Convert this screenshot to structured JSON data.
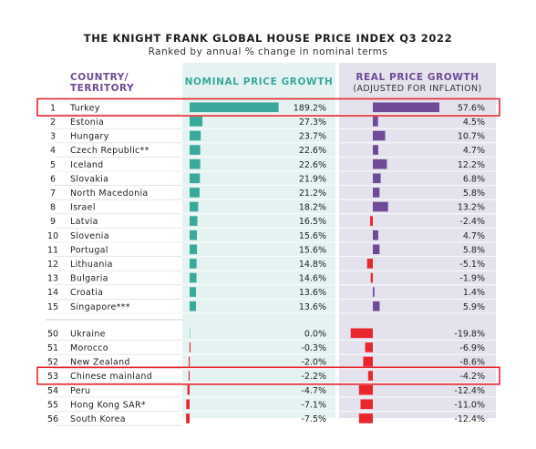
{
  "title": "THE KNIGHT FRANK GLOBAL HOUSE PRICE INDEX Q3 2022",
  "subtitle": "Ranked by annual % change in nominal terms",
  "columns": {
    "country_line1": "COUNTRY/",
    "country_line2": "TERRITORY",
    "nominal": "NOMINAL PRICE GROWTH",
    "real_line1": "REAL PRICE GROWTH",
    "real_line2": "(ADJUSTED FOR INFLATION)"
  },
  "colors": {
    "nominal_positive": "#3aa89b",
    "real_positive": "#6f4a96",
    "negative": "#e8262d",
    "highlight": "#e8262d",
    "nominal_bg": "#e4f3f1",
    "real_bg": "#e4e2ed",
    "header_nominal_text": "#3aa89b",
    "header_real_text": "#6f4a96",
    "header_country_text": "#6f4a96"
  },
  "highlighted_ranks": [
    1,
    53
  ],
  "chart_data": {
    "type": "bar",
    "title": "THE KNIGHT FRANK GLOBAL HOUSE PRICE INDEX Q3 2022",
    "subtitle": "Ranked by annual % change in nominal terms",
    "categories": [
      "Turkey",
      "Estonia",
      "Hungary",
      "Czech Republic**",
      "Iceland",
      "Slovakia",
      "North Macedonia",
      "Israel",
      "Latvia",
      "Slovenia",
      "Portugal",
      "Lithuania",
      "Bulgaria",
      "Croatia",
      "Singapore***",
      "Ukraine",
      "Morocco",
      "New Zealand",
      "Chinese mainland",
      "Peru",
      "Hong Kong SAR*",
      "South Korea"
    ],
    "ranks": [
      1,
      2,
      3,
      4,
      5,
      6,
      7,
      8,
      9,
      10,
      11,
      12,
      13,
      14,
      15,
      50,
      51,
      52,
      53,
      54,
      55,
      56
    ],
    "series": [
      {
        "name": "NOMINAL PRICE GROWTH",
        "values": [
          189.2,
          27.3,
          23.7,
          22.6,
          22.6,
          21.9,
          21.2,
          18.2,
          16.5,
          15.6,
          15.6,
          14.8,
          14.6,
          13.6,
          13.6,
          0.0,
          -0.3,
          -2.0,
          -2.2,
          -4.7,
          -7.1,
          -7.5
        ],
        "labels": [
          "189.2%",
          "27.3%",
          "23.7%",
          "22.6%",
          "22.6%",
          "21.9%",
          "21.2%",
          "18.2%",
          "16.5%",
          "15.6%",
          "15.6%",
          "14.8%",
          "14.6%",
          "13.6%",
          "13.6%",
          "0.0%",
          "-0.3%",
          "-2.0%",
          "-2.2%",
          "-4.7%",
          "-7.1%",
          "-7.5%"
        ]
      },
      {
        "name": "REAL PRICE GROWTH",
        "values": [
          57.6,
          4.5,
          10.7,
          4.7,
          12.2,
          6.8,
          5.8,
          13.2,
          -2.4,
          4.7,
          5.8,
          -5.1,
          -1.9,
          1.4,
          5.9,
          -19.8,
          -6.9,
          -8.6,
          -4.2,
          -12.4,
          -11.0,
          -12.4
        ],
        "labels": [
          "57.6%",
          "4.5%",
          "10.7%",
          "4.7%",
          "12.2%",
          "6.8%",
          "5.8%",
          "13.2%",
          "-2.4%",
          "4.7%",
          "5.8%",
          "-5.1%",
          "-1.9%",
          "1.4%",
          "5.9%",
          "-19.8%",
          "-6.9%",
          "-8.6%",
          "-4.2%",
          "-12.4%",
          "-11.0%",
          "-12.4%"
        ]
      }
    ],
    "nominal_range": [
      -10,
      190
    ],
    "real_range": [
      -22,
      60
    ]
  }
}
